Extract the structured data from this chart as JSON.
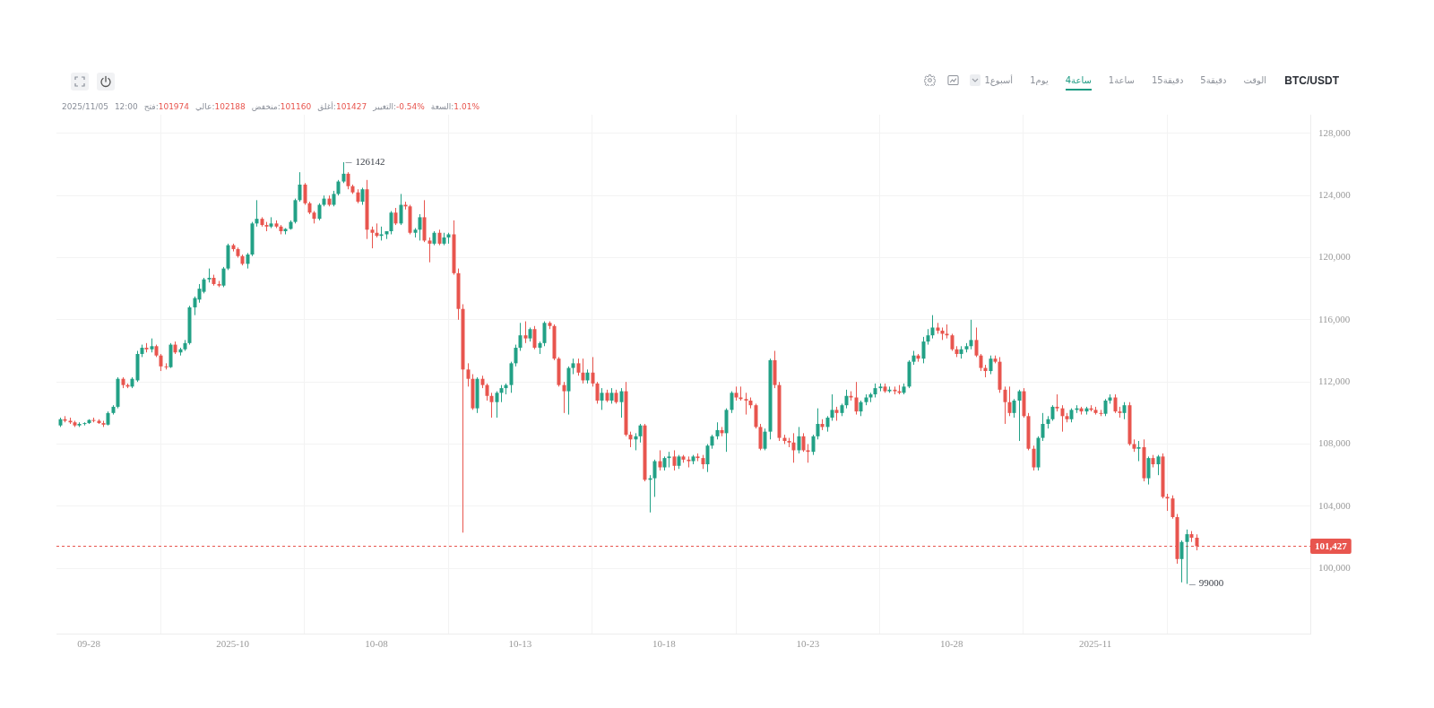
{
  "chart_data": {
    "type": "candlestick",
    "title": "BTC/USDT",
    "subtitle": "2025/11/05 12:00 فتح:101974 عالي:102188 منخفض:101160 أغلق:101427 التغيير:-0.54% السعة:1.01%",
    "x": [
      "2025-09-27T00:00",
      "2025-09-27T04:00",
      "2025-09-27T08:00",
      "2025-09-27T12:00",
      "2025-09-27T16:00",
      "2025-09-27T20:00",
      "2025-09-28T00:00",
      "2025-09-28T04:00",
      "2025-09-28T08:00",
      "2025-09-28T12:00",
      "2025-09-28T16:00",
      "2025-09-28T20:00",
      "2025-09-29T00:00",
      "2025-09-29T04:00",
      "2025-09-29T08:00",
      "2025-09-29T12:00",
      "2025-09-29T16:00",
      "2025-09-29T20:00",
      "2025-09-30T00:00",
      "2025-09-30T04:00",
      "2025-09-30T08:00",
      "2025-09-30T12:00",
      "2025-09-30T16:00",
      "2025-09-30T20:00",
      "2025-10-01T00:00",
      "2025-10-01T04:00",
      "2025-10-01T08:00",
      "2025-10-01T12:00",
      "2025-10-01T16:00",
      "2025-10-01T20:00",
      "2025-10-02T00:00",
      "2025-10-02T04:00",
      "2025-10-02T08:00",
      "2025-10-02T12:00",
      "2025-10-02T16:00",
      "2025-10-02T20:00",
      "2025-10-03T00:00",
      "2025-10-03T04:00",
      "2025-10-03T08:00",
      "2025-10-03T12:00",
      "2025-10-03T16:00",
      "2025-10-03T20:00",
      "2025-10-04T00:00",
      "2025-10-04T04:00",
      "2025-10-04T08:00",
      "2025-10-04T12:00",
      "2025-10-04T16:00",
      "2025-10-04T20:00",
      "2025-10-05T00:00",
      "2025-10-05T04:00",
      "2025-10-05T08:00",
      "2025-10-05T12:00",
      "2025-10-05T16:00",
      "2025-10-05T20:00",
      "2025-10-06T00:00",
      "2025-10-06T04:00",
      "2025-10-06T08:00",
      "2025-10-06T12:00",
      "2025-10-06T16:00",
      "2025-10-06T20:00",
      "2025-10-07T00:00",
      "2025-10-07T04:00",
      "2025-10-07T08:00",
      "2025-10-07T12:00",
      "2025-10-07T16:00",
      "2025-10-07T20:00",
      "2025-10-08T00:00",
      "2025-10-08T04:00",
      "2025-10-08T08:00",
      "2025-10-08T12:00",
      "2025-10-08T16:00",
      "2025-10-08T20:00",
      "2025-10-09T00:00",
      "2025-10-09T04:00",
      "2025-10-09T08:00",
      "2025-10-09T12:00",
      "2025-10-09T16:00",
      "2025-10-09T20:00",
      "2025-10-10T00:00",
      "2025-10-10T04:00",
      "2025-10-10T08:00",
      "2025-10-10T12:00",
      "2025-10-10T16:00",
      "2025-10-10T20:00",
      "2025-10-11T00:00",
      "2025-10-11T04:00",
      "2025-10-11T08:00",
      "2025-10-11T12:00",
      "2025-10-11T16:00",
      "2025-10-11T20:00",
      "2025-10-12T00:00",
      "2025-10-12T04:00",
      "2025-10-12T08:00",
      "2025-10-12T12:00",
      "2025-10-12T16:00",
      "2025-10-12T20:00",
      "2025-10-13T00:00",
      "2025-10-13T04:00",
      "2025-10-13T08:00",
      "2025-10-13T12:00",
      "2025-10-13T16:00",
      "2025-10-13T20:00",
      "2025-10-14T00:00",
      "2025-10-14T04:00",
      "2025-10-14T08:00",
      "2025-10-14T12:00",
      "2025-10-14T16:00",
      "2025-10-14T20:00",
      "2025-10-15T00:00",
      "2025-10-15T04:00",
      "2025-10-15T08:00",
      "2025-10-15T12:00",
      "2025-10-15T16:00",
      "2025-10-15T20:00",
      "2025-10-16T00:00",
      "2025-10-16T04:00",
      "2025-10-16T08:00",
      "2025-10-16T12:00",
      "2025-10-16T16:00",
      "2025-10-16T20:00",
      "2025-10-17T00:00",
      "2025-10-17T04:00",
      "2025-10-17T08:00",
      "2025-10-17T12:00",
      "2025-10-17T16:00",
      "2025-10-17T20:00",
      "2025-10-18T00:00",
      "2025-10-18T04:00",
      "2025-10-18T08:00",
      "2025-10-18T12:00",
      "2025-10-18T16:00",
      "2025-10-18T20:00",
      "2025-10-19T00:00",
      "2025-10-19T04:00",
      "2025-10-19T08:00",
      "2025-10-19T12:00",
      "2025-10-19T16:00",
      "2025-10-19T20:00",
      "2025-10-20T00:00",
      "2025-10-20T04:00",
      "2025-10-20T08:00",
      "2025-10-20T12:00",
      "2025-10-20T16:00",
      "2025-10-20T20:00",
      "2025-10-21T00:00",
      "2025-10-21T04:00",
      "2025-10-21T08:00",
      "2025-10-21T12:00",
      "2025-10-21T16:00",
      "2025-10-21T20:00",
      "2025-10-22T00:00",
      "2025-10-22T04:00",
      "2025-10-22T08:00",
      "2025-10-22T12:00",
      "2025-10-22T16:00",
      "2025-10-22T20:00",
      "2025-10-23T00:00",
      "2025-10-23T04:00",
      "2025-10-23T08:00",
      "2025-10-23T12:00",
      "2025-10-23T16:00",
      "2025-10-23T20:00",
      "2025-10-24T00:00",
      "2025-10-24T04:00",
      "2025-10-24T08:00",
      "2025-10-24T12:00",
      "2025-10-24T16:00",
      "2025-10-24T20:00",
      "2025-10-25T00:00",
      "2025-10-25T04:00",
      "2025-10-25T08:00",
      "2025-10-25T12:00",
      "2025-10-25T16:00",
      "2025-10-25T20:00",
      "2025-10-26T00:00",
      "2025-10-26T04:00",
      "2025-10-26T08:00",
      "2025-10-26T12:00",
      "2025-10-26T16:00",
      "2025-10-26T20:00",
      "2025-10-27T00:00",
      "2025-10-27T04:00",
      "2025-10-27T08:00",
      "2025-10-27T12:00",
      "2025-10-27T16:00",
      "2025-10-27T20:00",
      "2025-10-28T00:00",
      "2025-10-28T04:00",
      "2025-10-28T08:00",
      "2025-10-28T12:00",
      "2025-10-28T16:00",
      "2025-10-28T20:00",
      "2025-10-29T00:00",
      "2025-10-29T04:00",
      "2025-10-29T08:00",
      "2025-10-29T12:00",
      "2025-10-29T16:00",
      "2025-10-29T20:00",
      "2025-10-30T00:00",
      "2025-10-30T04:00",
      "2025-10-30T08:00",
      "2025-10-30T12:00",
      "2025-10-30T16:00",
      "2025-10-30T20:00",
      "2025-10-31T00:00",
      "2025-10-31T04:00",
      "2025-10-31T08:00",
      "2025-10-31T12:00",
      "2025-10-31T16:00",
      "2025-10-31T20:00",
      "2025-11-01T00:00",
      "2025-11-01T04:00",
      "2025-11-01T08:00",
      "2025-11-01T12:00",
      "2025-11-01T16:00",
      "2025-11-01T20:00",
      "2025-11-02T00:00",
      "2025-11-02T04:00",
      "2025-11-02T08:00",
      "2025-11-02T12:00",
      "2025-11-02T16:00",
      "2025-11-02T20:00",
      "2025-11-03T00:00",
      "2025-11-03T04:00",
      "2025-11-03T08:00",
      "2025-11-03T12:00",
      "2025-11-03T16:00",
      "2025-11-03T20:00",
      "2025-11-04T00:00",
      "2025-11-04T04:00",
      "2025-11-04T08:00",
      "2025-11-04T12:00",
      "2025-11-04T16:00",
      "2025-11-04T20:00",
      "2025-11-05T00:00",
      "2025-11-05T04:00",
      "2025-11-05T08:00",
      "2025-11-05T12:00"
    ],
    "ohlc": [
      [
        109200,
        109700,
        109100,
        109600
      ],
      [
        109600,
        109800,
        109400,
        109500
      ],
      [
        109500,
        109700,
        109300,
        109400
      ],
      [
        109400,
        109500,
        109100,
        109200
      ],
      [
        109200,
        109400,
        109100,
        109300
      ],
      [
        109300,
        109400,
        109200,
        109350
      ],
      [
        109350,
        109600,
        109300,
        109550
      ],
      [
        109550,
        109700,
        109400,
        109500
      ],
      [
        109500,
        109600,
        109300,
        109350
      ],
      [
        109350,
        109500,
        109100,
        109250
      ],
      [
        109250,
        110100,
        109200,
        110000
      ],
      [
        110000,
        110500,
        109900,
        110400
      ],
      [
        110400,
        112300,
        110300,
        112200
      ],
      [
        112200,
        112300,
        111600,
        111800
      ],
      [
        111800,
        111900,
        111600,
        111700
      ],
      [
        111700,
        112300,
        111600,
        112200
      ],
      [
        112100,
        114000,
        112000,
        113800
      ],
      [
        113800,
        114400,
        113600,
        114200
      ],
      [
        114200,
        114500,
        113900,
        114100
      ],
      [
        114100,
        114800,
        113900,
        114300
      ],
      [
        114300,
        114400,
        113600,
        113700
      ],
      [
        113700,
        113800,
        112700,
        113000
      ],
      [
        113000,
        113200,
        112800,
        112950
      ],
      [
        112950,
        114500,
        112900,
        114400
      ],
      [
        114400,
        114600,
        113800,
        113900
      ],
      [
        113900,
        114200,
        113700,
        114100
      ],
      [
        114100,
        114700,
        114000,
        114500
      ],
      [
        114500,
        116900,
        114400,
        116800
      ],
      [
        116800,
        117500,
        116300,
        117400
      ],
      [
        117300,
        118300,
        117100,
        118000
      ],
      [
        117800,
        118700,
        117700,
        118600
      ],
      [
        118600,
        119300,
        118400,
        118700
      ],
      [
        118700,
        118900,
        118200,
        118300
      ],
      [
        118300,
        118500,
        118100,
        118200
      ],
      [
        118200,
        119400,
        118100,
        119300
      ],
      [
        119300,
        120900,
        119200,
        120800
      ],
      [
        120800,
        120900,
        120400,
        120550
      ],
      [
        120550,
        120650,
        120000,
        120100
      ],
      [
        120100,
        120200,
        119500,
        119600
      ],
      [
        119600,
        120300,
        119300,
        120200
      ],
      [
        120200,
        122300,
        120100,
        122200
      ],
      [
        122200,
        123700,
        122000,
        122500
      ],
      [
        122500,
        122600,
        122000,
        122100
      ],
      [
        122100,
        122300,
        121700,
        122000
      ],
      [
        122000,
        122600,
        121900,
        122200
      ],
      [
        122200,
        122400,
        121900,
        122000
      ],
      [
        122000,
        122100,
        121500,
        121700
      ],
      [
        121700,
        121900,
        121500,
        121850
      ],
      [
        121850,
        122400,
        121800,
        122300
      ],
      [
        122300,
        123800,
        122200,
        123700
      ],
      [
        123700,
        125500,
        123600,
        124700
      ],
      [
        124700,
        124800,
        123400,
        123500
      ],
      [
        123500,
        123600,
        122800,
        122900
      ],
      [
        122900,
        123000,
        122200,
        122500
      ],
      [
        122500,
        123500,
        122400,
        123400
      ],
      [
        123400,
        124000,
        123300,
        123800
      ],
      [
        123800,
        124000,
        123300,
        123400
      ],
      [
        123400,
        124300,
        123300,
        124100
      ],
      [
        124100,
        125000,
        124000,
        124900
      ],
      [
        124900,
        126142,
        124800,
        125400
      ],
      [
        125400,
        125500,
        124400,
        124600
      ],
      [
        124600,
        124700,
        124100,
        124200
      ],
      [
        124200,
        124400,
        123500,
        123600
      ],
      [
        123600,
        124500,
        123400,
        124400
      ],
      [
        124400,
        125000,
        121200,
        121800
      ],
      [
        121800,
        122000,
        120600,
        121600
      ],
      [
        121600,
        122200,
        121300,
        121400
      ],
      [
        121400,
        122000,
        121100,
        121500
      ],
      [
        121500,
        121700,
        121200,
        121700
      ],
      [
        121700,
        123000,
        121500,
        122900
      ],
      [
        122900,
        123200,
        122100,
        122200
      ],
      [
        122200,
        124100,
        122100,
        123400
      ],
      [
        123400,
        123600,
        123100,
        123300
      ],
      [
        123300,
        123400,
        121500,
        121600
      ],
      [
        121600,
        121900,
        121300,
        121800
      ],
      [
        121800,
        122800,
        121100,
        122600
      ],
      [
        122600,
        123700,
        121000,
        121100
      ],
      [
        121100,
        121300,
        119700,
        120900
      ],
      [
        120900,
        121700,
        120800,
        121600
      ],
      [
        121600,
        121800,
        120800,
        120900
      ],
      [
        120900,
        121600,
        120800,
        121300
      ],
      [
        121300,
        121600,
        120900,
        121500
      ],
      [
        121500,
        122400,
        118900,
        119000
      ],
      [
        119000,
        119300,
        116000,
        116700
      ],
      [
        116700,
        117000,
        102300,
        112800
      ],
      [
        112800,
        113200,
        111700,
        112200
      ],
      [
        112200,
        112500,
        110200,
        110300
      ],
      [
        110300,
        112300,
        110000,
        112200
      ],
      [
        112200,
        112400,
        111600,
        111800
      ],
      [
        111800,
        111900,
        110800,
        111100
      ],
      [
        111100,
        111300,
        109700,
        110700
      ],
      [
        110700,
        111400,
        109700,
        111300
      ],
      [
        111300,
        111800,
        110700,
        111600
      ],
      [
        111600,
        111900,
        111200,
        111800
      ],
      [
        111800,
        113300,
        111300,
        113200
      ],
      [
        113200,
        114400,
        113000,
        114200
      ],
      [
        114200,
        115800,
        114000,
        115000
      ],
      [
        115000,
        115900,
        114500,
        114800
      ],
      [
        114800,
        115500,
        114600,
        115400
      ],
      [
        115400,
        115600,
        114100,
        114200
      ],
      [
        114200,
        114600,
        113800,
        114500
      ],
      [
        114500,
        115900,
        114300,
        115800
      ],
      [
        115800,
        115900,
        115400,
        115600
      ],
      [
        115600,
        115700,
        113400,
        113500
      ],
      [
        113500,
        113600,
        111700,
        111800
      ],
      [
        111800,
        112000,
        110000,
        111400
      ],
      [
        111400,
        113000,
        109900,
        112900
      ],
      [
        112900,
        113500,
        112500,
        113200
      ],
      [
        113200,
        113500,
        112400,
        112600
      ],
      [
        112600,
        113500,
        111900,
        112100
      ],
      [
        112100,
        112800,
        111900,
        112600
      ],
      [
        112600,
        113600,
        111700,
        111900
      ],
      [
        111900,
        112000,
        110600,
        110800
      ],
      [
        110800,
        111600,
        110200,
        111300
      ],
      [
        111300,
        111500,
        110700,
        110800
      ],
      [
        110800,
        111600,
        110600,
        111300
      ],
      [
        111300,
        111500,
        110600,
        110700
      ],
      [
        110700,
        111600,
        109700,
        111400
      ],
      [
        111400,
        112000,
        108500,
        108600
      ],
      [
        108600,
        108800,
        107800,
        108300
      ],
      [
        108300,
        108700,
        107600,
        108500
      ],
      [
        108500,
        109300,
        108100,
        109200
      ],
      [
        109200,
        109300,
        105600,
        105700
      ],
      [
        105700,
        106000,
        103600,
        105800
      ],
      [
        105800,
        107000,
        104600,
        106900
      ],
      [
        106900,
        107600,
        106300,
        106500
      ],
      [
        106500,
        107200,
        106300,
        107100
      ],
      [
        107100,
        107500,
        106500,
        107200
      ],
      [
        107200,
        107600,
        106300,
        106600
      ],
      [
        106600,
        107300,
        106400,
        107200
      ],
      [
        107200,
        107300,
        106800,
        107000
      ],
      [
        107000,
        107200,
        106500,
        106900
      ],
      [
        106900,
        107300,
        106700,
        107200
      ],
      [
        107200,
        107400,
        106900,
        107100
      ],
      [
        107100,
        107300,
        106400,
        106700
      ],
      [
        106700,
        108000,
        106200,
        107900
      ],
      [
        107900,
        108600,
        107700,
        108500
      ],
      [
        108500,
        109400,
        108300,
        108900
      ],
      [
        108900,
        109100,
        108500,
        108700
      ],
      [
        108700,
        110300,
        107500,
        110200
      ],
      [
        110200,
        111400,
        110000,
        111300
      ],
      [
        111300,
        111700,
        110800,
        111000
      ],
      [
        111000,
        111700,
        110800,
        110900
      ],
      [
        110900,
        111300,
        109900,
        110800
      ],
      [
        110800,
        111000,
        110300,
        110500
      ],
      [
        110500,
        110600,
        109000,
        109100
      ],
      [
        109100,
        109300,
        107600,
        107700
      ],
      [
        107700,
        109000,
        107600,
        108800
      ],
      [
        108800,
        113500,
        108300,
        113400
      ],
      [
        113400,
        114000,
        111600,
        111800
      ],
      [
        111800,
        112000,
        108200,
        108400
      ],
      [
        108400,
        108600,
        108000,
        108200
      ],
      [
        108200,
        108400,
        107800,
        108100
      ],
      [
        108100,
        108700,
        106800,
        107600
      ],
      [
        107600,
        109100,
        107400,
        108500
      ],
      [
        108500,
        108700,
        107500,
        107600
      ],
      [
        107600,
        108000,
        106800,
        107500
      ],
      [
        107500,
        108600,
        107300,
        108500
      ],
      [
        108500,
        110300,
        108300,
        109300
      ],
      [
        109300,
        109600,
        108900,
        109100
      ],
      [
        109100,
        109800,
        108800,
        109700
      ],
      [
        109700,
        111200,
        109500,
        110200
      ],
      [
        110200,
        110400,
        109500,
        110000
      ],
      [
        110000,
        110600,
        109800,
        110500
      ],
      [
        110500,
        111500,
        110300,
        111100
      ],
      [
        111100,
        111400,
        110800,
        111000
      ],
      [
        111000,
        112000,
        109900,
        110100
      ],
      [
        110100,
        110800,
        109800,
        110700
      ],
      [
        110700,
        111200,
        110500,
        111000
      ],
      [
        111000,
        111300,
        110700,
        111200
      ],
      [
        111200,
        111900,
        111000,
        111600
      ],
      [
        111600,
        111900,
        111400,
        111700
      ],
      [
        111700,
        111900,
        111300,
        111400
      ],
      [
        111400,
        111700,
        111300,
        111500
      ],
      [
        111500,
        111700,
        111200,
        111400
      ],
      [
        111400,
        111800,
        111200,
        111300
      ],
      [
        111300,
        111900,
        111200,
        111700
      ],
      [
        111700,
        113400,
        111600,
        113300
      ],
      [
        113300,
        114000,
        113100,
        113700
      ],
      [
        113700,
        113800,
        113300,
        113500
      ],
      [
        113500,
        114900,
        113200,
        114600
      ],
      [
        114600,
        115400,
        114400,
        115000
      ],
      [
        115000,
        116300,
        114800,
        115500
      ],
      [
        115500,
        115800,
        115100,
        115300
      ],
      [
        115300,
        115500,
        114700,
        115100
      ],
      [
        115100,
        115700,
        114800,
        115000
      ],
      [
        115000,
        115100,
        114000,
        114100
      ],
      [
        114100,
        114300,
        113600,
        113800
      ],
      [
        113800,
        114300,
        113500,
        114100
      ],
      [
        114100,
        114500,
        113900,
        114300
      ],
      [
        114300,
        116000,
        114100,
        114700
      ],
      [
        114700,
        115500,
        113600,
        113700
      ],
      [
        113700,
        113800,
        112700,
        112900
      ],
      [
        112900,
        113100,
        112300,
        112700
      ],
      [
        112700,
        113700,
        112500,
        113500
      ],
      [
        113500,
        113700,
        113200,
        113300
      ],
      [
        113300,
        113600,
        111300,
        111500
      ],
      [
        111500,
        111700,
        109300,
        110700
      ],
      [
        110700,
        111700,
        109800,
        110000
      ],
      [
        110000,
        110900,
        109700,
        110800
      ],
      [
        110800,
        111500,
        108200,
        111400
      ],
      [
        111400,
        111600,
        109700,
        109800
      ],
      [
        109800,
        110000,
        107600,
        107700
      ],
      [
        107700,
        107900,
        106300,
        106500
      ],
      [
        106500,
        108500,
        106300,
        108400
      ],
      [
        108400,
        110000,
        108200,
        109300
      ],
      [
        109300,
        109800,
        109000,
        109600
      ],
      [
        109600,
        110500,
        109500,
        110400
      ],
      [
        110400,
        111200,
        110100,
        110300
      ],
      [
        110300,
        110500,
        108800,
        109800
      ],
      [
        109800,
        110000,
        109400,
        109600
      ],
      [
        109600,
        110300,
        109400,
        110200
      ],
      [
        110200,
        110500,
        110000,
        110300
      ],
      [
        110300,
        110400,
        109900,
        110100
      ],
      [
        110100,
        110400,
        109900,
        110300
      ],
      [
        110300,
        110500,
        110100,
        110200
      ],
      [
        110200,
        110400,
        109900,
        110000
      ],
      [
        110000,
        110200,
        109800,
        109950
      ],
      [
        109950,
        110900,
        109800,
        110800
      ],
      [
        110800,
        111200,
        110600,
        111000
      ],
      [
        111000,
        111200,
        110000,
        110100
      ],
      [
        110100,
        110400,
        109700,
        110000
      ],
      [
        110000,
        110700,
        109600,
        110500
      ],
      [
        110500,
        110700,
        107900,
        108000
      ],
      [
        108000,
        108300,
        107500,
        107700
      ],
      [
        107700,
        108200,
        106900,
        107800
      ],
      [
        107800,
        108300,
        105600,
        105800
      ],
      [
        105800,
        107200,
        105400,
        107100
      ],
      [
        107100,
        107300,
        106500,
        106700
      ],
      [
        106700,
        107300,
        106000,
        107200
      ],
      [
        107200,
        107400,
        104500,
        104600
      ],
      [
        104600,
        104800,
        103700,
        104500
      ],
      [
        104500,
        104700,
        103200,
        103300
      ],
      [
        103300,
        103500,
        100300,
        100600
      ],
      [
        100600,
        101800,
        99100,
        101700
      ],
      [
        101700,
        102500,
        99000,
        102200
      ],
      [
        102200,
        102400,
        101700,
        101974
      ],
      [
        101974,
        102188,
        101160,
        101427
      ]
    ],
    "xlim": [
      "2025-09-26T21:00",
      "2025-11-09T11:20"
    ],
    "xticks": [
      {
        "value": "2025-09-28",
        "label": "09-28"
      },
      {
        "value": "2025-10-03",
        "label": "2025-10"
      },
      {
        "value": "2025-10-08",
        "label": "10-08"
      },
      {
        "value": "2025-10-13",
        "label": "10-13"
      },
      {
        "value": "2025-10-18",
        "label": "10-18"
      },
      {
        "value": "2025-10-23",
        "label": "10-23"
      },
      {
        "value": "2025-10-28",
        "label": "10-28"
      },
      {
        "value": "2025-11-02",
        "label": "2025-11"
      }
    ],
    "ylim": [
      95800,
      129200
    ],
    "yticks": [
      {
        "value": 100000,
        "label": "100,000"
      },
      {
        "value": 104000,
        "label": "104,000"
      },
      {
        "value": 108000,
        "label": "108,000"
      },
      {
        "value": 112000,
        "label": "112,000"
      },
      {
        "value": 116000,
        "label": "116,000"
      },
      {
        "value": 120000,
        "label": "120,000"
      },
      {
        "value": 124000,
        "label": "124,000"
      },
      {
        "value": 128000,
        "label": "128,000"
      }
    ],
    "grid": true,
    "ref_lines": [
      {
        "axis": "y",
        "value": 101427,
        "label": "101,427",
        "color": "#e8554e",
        "line_style": "dotted"
      }
    ],
    "annotations": [
      "الوقت",
      "5دقيقة",
      "15دقيقة",
      "1ساعة",
      "4ساعة",
      "1يوم",
      "1أسبوع",
      {
        "text": "126142",
        "x": "2025-10-06T20:00",
        "y": 126142
      },
      {
        "text": "99000",
        "x": "2025-11-05T04:00",
        "y": 99000
      }
    ]
  }
}
